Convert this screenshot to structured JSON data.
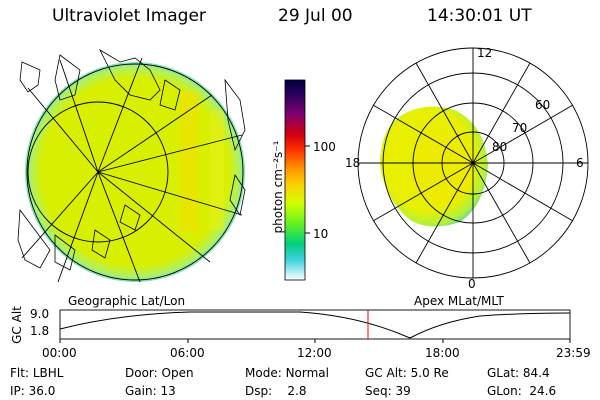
{
  "header": {
    "title": "Ultraviolet Imager",
    "date": "29 Jul 00",
    "time": "14:30:01 UT"
  },
  "colorbar": {
    "unit_label": "photon cm⁻²s⁻¹",
    "ticks": [
      "100",
      "10"
    ],
    "colors": [
      "#000040",
      "#300060",
      "#800070",
      "#c00020",
      "#ff2000",
      "#ff8000",
      "#ffc000",
      "#e0ff00",
      "#80ff00",
      "#00e060",
      "#00c0c0",
      "#a0e0ff",
      "#ffffff"
    ]
  },
  "geo_panel": {
    "label": "Geographic Lat/Lon",
    "fill_color": "#d8f000",
    "rim_color": "#80e0a0"
  },
  "polar_panel": {
    "label": "Apex MLat/MLT",
    "mlt_labels": [
      "12",
      "18",
      "6",
      "0"
    ],
    "lat_labels": [
      "60",
      "70",
      "80"
    ],
    "fill_color": "#e0f000",
    "rim_color": "#60d0a0"
  },
  "alt_plot": {
    "ylabel": "GC Alt",
    "yticks": [
      "9.0",
      "1.8"
    ],
    "xticks": [
      "00:00",
      "06:00",
      "12:00",
      "18:00",
      "23:59"
    ],
    "marker_time": "14:30",
    "marker_color": "#ff0000"
  },
  "info": {
    "row1": [
      {
        "label": "Flt:",
        "value": "LBHL"
      },
      {
        "label": "Door:",
        "value": "Open"
      },
      {
        "label": "Mode:",
        "value": "Normal"
      },
      {
        "label": "GC Alt:",
        "value": "5.0 Re"
      },
      {
        "label": "GLat:",
        "value": "84.4"
      }
    ],
    "row2": [
      {
        "label": "IP:",
        "value": "36.0"
      },
      {
        "label": "Gain:",
        "value": "13"
      },
      {
        "label": "Dsp:",
        "value": "2.8"
      },
      {
        "label": "Seq:",
        "value": "39"
      },
      {
        "label": "GLon:",
        "value": "24.6"
      }
    ]
  }
}
